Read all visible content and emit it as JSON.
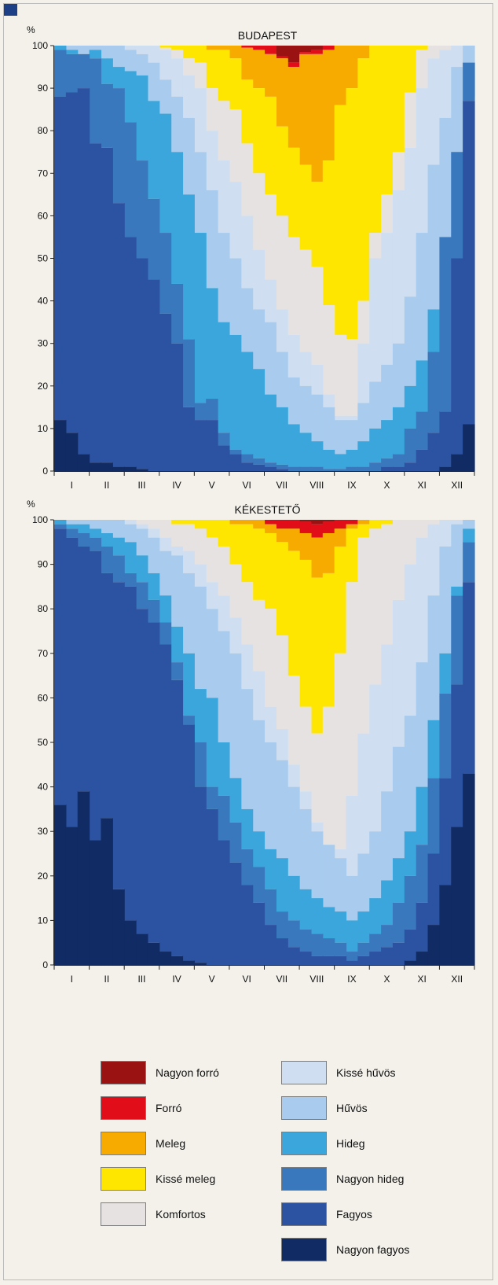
{
  "categories": [
    {
      "key": "nagyon_forro",
      "label": "Nagyon forró",
      "color": "#9b1212"
    },
    {
      "key": "forro",
      "label": "Forró",
      "color": "#e10d18"
    },
    {
      "key": "meleg",
      "label": "Meleg",
      "color": "#f7ab00"
    },
    {
      "key": "kisse_meleg",
      "label": "Kissé meleg",
      "color": "#ffe600"
    },
    {
      "key": "komfortos",
      "label": "Komfortos",
      "color": "#e6e2e1"
    },
    {
      "key": "kisse_huvos",
      "label": "Kissé hűvös",
      "color": "#cfdff1"
    },
    {
      "key": "huvos",
      "label": "Hűvös",
      "color": "#a9ccee"
    },
    {
      "key": "hideg",
      "label": "Hideg",
      "color": "#3aa6dc"
    },
    {
      "key": "nagyon_hideg",
      "label": "Nagyon hideg",
      "color": "#3a78bd"
    },
    {
      "key": "fagyos",
      "label": "Fagyos",
      "color": "#2c52a2"
    },
    {
      "key": "nagyon_fagyos",
      "label": "Nagyon fagyos",
      "color": "#112b64"
    }
  ],
  "chart_data": [
    {
      "type": "area",
      "stacked": true,
      "title": "BUDAPEST",
      "ylabel": "%",
      "ylim": [
        0,
        100
      ],
      "yticks": [
        0,
        10,
        20,
        30,
        40,
        50,
        60,
        70,
        80,
        90,
        100
      ],
      "months": [
        "I",
        "II",
        "III",
        "IV",
        "V",
        "VI",
        "VII",
        "VIII",
        "IX",
        "X",
        "XI",
        "XII"
      ],
      "x_points": [
        1,
        2,
        3,
        4,
        5,
        6,
        7,
        8,
        9,
        10,
        11,
        12,
        13,
        14,
        15,
        16,
        17,
        18,
        19,
        20,
        21,
        22,
        23,
        24,
        25,
        26,
        27,
        28,
        29,
        30,
        31,
        32,
        33,
        34,
        35,
        36
      ],
      "boundaries_from_top": [
        {
          "upper": "nagyon_forro",
          "lower": "forro",
          "values": [
            100,
            100,
            100,
            100,
            100,
            100,
            100,
            100,
            100,
            100,
            100,
            100,
            100,
            100,
            100,
            100,
            100,
            100,
            100,
            97.5,
            96,
            98.5,
            99,
            100,
            100,
            100,
            100,
            100,
            100,
            100,
            100,
            100,
            100,
            100,
            100,
            100
          ]
        },
        {
          "upper": "forro",
          "lower": "meleg",
          "values": [
            100,
            100,
            100,
            100,
            100,
            100,
            100,
            100,
            100,
            100,
            100,
            100,
            100,
            100,
            100,
            100,
            99.5,
            99,
            98,
            97,
            95,
            98,
            98,
            99,
            100,
            100,
            100,
            100,
            100,
            100,
            100,
            100,
            100,
            100,
            100,
            100
          ]
        },
        {
          "upper": "meleg",
          "lower": "kisse_meleg",
          "values": [
            100,
            100,
            100,
            100,
            100,
            100,
            100,
            100,
            100,
            100,
            100,
            100,
            100,
            99,
            99,
            97,
            92,
            90,
            88,
            81,
            76,
            72,
            68,
            73,
            86,
            90,
            97,
            100,
            100,
            100,
            100,
            100,
            100,
            100,
            100,
            100
          ]
        },
        {
          "upper": "kisse_meleg",
          "lower": "komfortos",
          "values": [
            100,
            100,
            100,
            100,
            100,
            100,
            100,
            100,
            100,
            99.5,
            99,
            97,
            96,
            90,
            87,
            85,
            77,
            70,
            65,
            60,
            55,
            52,
            48,
            39,
            32,
            31,
            40,
            56,
            65,
            75,
            89,
            99,
            100,
            100,
            100,
            100
          ]
        },
        {
          "upper": "komfortos",
          "lower": "kisse_huvos",
          "values": [
            100,
            100,
            100,
            100,
            100,
            100,
            100,
            100,
            100,
            99,
            97,
            93,
            90,
            80,
            73,
            68,
            60,
            52,
            45,
            38,
            32,
            28,
            25,
            18,
            13,
            13,
            30,
            50,
            56,
            66,
            76,
            90,
            97,
            99,
            100,
            100
          ]
        },
        {
          "upper": "kisse_huvos",
          "lower": "huvos",
          "values": [
            100,
            100,
            100,
            100,
            100,
            100,
            99,
            98,
            96,
            92,
            88,
            83,
            75,
            66,
            56,
            50,
            43,
            38,
            35,
            28,
            22,
            20,
            18,
            15,
            12,
            12,
            16,
            21,
            25,
            30,
            41,
            56,
            72,
            83,
            95,
            100
          ]
        },
        {
          "upper": "huvos",
          "lower": "hideg",
          "values": [
            100,
            99,
            98,
            99,
            97,
            95,
            94,
            93,
            87,
            84,
            75,
            65,
            56,
            43,
            35,
            32,
            28,
            24,
            18,
            15,
            11,
            9,
            7,
            5,
            4,
            5,
            7,
            10,
            12,
            15,
            20,
            26,
            38,
            52,
            60,
            88
          ]
        },
        {
          "upper": "hideg",
          "lower": "nagyon_hideg",
          "values": [
            99,
            98,
            98,
            97,
            91,
            90,
            82,
            73,
            64,
            56,
            44,
            31,
            16,
            17,
            9,
            5,
            4,
            3,
            2,
            1.5,
            1,
            1,
            1,
            0.5,
            0.5,
            1,
            1,
            2,
            3,
            4,
            10,
            14,
            28,
            55,
            75,
            96
          ]
        },
        {
          "upper": "nagyon_hideg",
          "lower": "fagyos",
          "values": [
            88,
            89,
            90,
            77,
            76,
            63,
            55,
            50,
            45,
            37,
            30,
            15,
            12,
            12,
            6,
            4,
            2,
            1.5,
            1,
            0.5,
            0,
            0,
            0,
            0,
            0,
            0,
            0,
            0,
            1,
            1,
            2,
            5,
            9,
            14,
            50,
            87
          ]
        },
        {
          "upper": "fagyos",
          "lower": "nagyon_fagyos",
          "values": [
            12,
            9,
            4,
            2,
            2,
            1,
            1,
            0.5,
            0,
            0,
            0,
            0,
            0,
            0,
            0,
            0,
            0,
            0,
            0,
            0,
            0,
            0,
            0,
            0,
            0,
            0,
            0,
            0,
            0,
            0,
            0,
            0,
            0,
            1,
            4,
            11
          ]
        }
      ]
    },
    {
      "type": "area",
      "stacked": true,
      "title": "KÉKESTETŐ",
      "ylabel": "%",
      "ylim": [
        0,
        100
      ],
      "yticks": [
        0,
        10,
        20,
        30,
        40,
        50,
        60,
        70,
        80,
        90,
        100
      ],
      "months": [
        "I",
        "II",
        "III",
        "IV",
        "V",
        "VI",
        "VII",
        "VIII",
        "IX",
        "X",
        "XI",
        "XII"
      ],
      "x_points": [
        1,
        2,
        3,
        4,
        5,
        6,
        7,
        8,
        9,
        10,
        11,
        12,
        13,
        14,
        15,
        16,
        17,
        18,
        19,
        20,
        21,
        22,
        23,
        24,
        25,
        26,
        27,
        28,
        29,
        30,
        31,
        32,
        33,
        34,
        35,
        36
      ],
      "boundaries_from_top": [
        {
          "upper": "nagyon_forro",
          "lower": "forro",
          "values": [
            100,
            100,
            100,
            100,
            100,
            100,
            100,
            100,
            100,
            100,
            100,
            100,
            100,
            100,
            100,
            100,
            100,
            100,
            100,
            100,
            100,
            99.5,
            99,
            99.5,
            100,
            100,
            100,
            100,
            100,
            100,
            100,
            100,
            100,
            100,
            100,
            100
          ]
        },
        {
          "upper": "forro",
          "lower": "meleg",
          "values": [
            100,
            100,
            100,
            100,
            100,
            100,
            100,
            100,
            100,
            100,
            100,
            100,
            100,
            100,
            100,
            100,
            100,
            100,
            99,
            98,
            98,
            97,
            96,
            97,
            98,
            99,
            100,
            100,
            100,
            100,
            100,
            100,
            100,
            100,
            100,
            100
          ]
        },
        {
          "upper": "meleg",
          "lower": "kisse_meleg",
          "values": [
            100,
            100,
            100,
            100,
            100,
            100,
            100,
            100,
            100,
            100,
            100,
            100,
            100,
            100,
            100,
            99,
            99,
            98,
            97,
            95,
            93,
            91,
            87,
            88,
            94,
            98,
            99,
            100,
            100,
            100,
            100,
            100,
            100,
            100,
            100,
            100
          ]
        },
        {
          "upper": "kisse_meleg",
          "lower": "komfortos",
          "values": [
            100,
            100,
            100,
            100,
            100,
            100,
            100,
            100,
            100,
            100,
            99,
            99,
            98,
            96,
            94,
            90,
            86,
            82,
            80,
            74,
            65,
            58,
            52,
            58,
            70,
            86,
            96,
            98,
            99,
            100,
            100,
            100,
            100,
            100,
            100,
            100
          ]
        },
        {
          "upper": "komfortos",
          "lower": "kisse_huvos",
          "values": [
            100,
            100,
            100,
            100,
            100,
            100,
            100,
            99,
            98,
            96,
            94,
            93,
            90,
            86,
            83,
            78,
            72,
            66,
            58,
            53,
            45,
            39,
            32,
            27,
            26,
            38,
            52,
            63,
            72,
            82,
            90,
            96,
            99,
            100,
            100,
            100
          ]
        },
        {
          "upper": "kisse_huvos",
          "lower": "huvos",
          "values": [
            100,
            100,
            100,
            100,
            100,
            100,
            99,
            98,
            96,
            93,
            92,
            88,
            85,
            80,
            75,
            70,
            62,
            55,
            50,
            46,
            40,
            35,
            30,
            27,
            24,
            20,
            25,
            30,
            39,
            49,
            56,
            68,
            83,
            94,
            99,
            100
          ]
        },
        {
          "upper": "huvos",
          "lower": "hideg",
          "values": [
            100,
            99,
            99,
            98,
            97,
            96,
            95,
            92,
            88,
            83,
            76,
            70,
            62,
            60,
            50,
            42,
            35,
            30,
            26,
            24,
            20,
            17,
            15,
            13,
            12,
            10,
            12,
            15,
            19,
            24,
            30,
            40,
            55,
            70,
            85,
            98
          ]
        },
        {
          "upper": "hideg",
          "lower": "nagyon_hideg",
          "values": [
            99,
            98,
            97,
            96,
            94,
            92,
            88,
            86,
            82,
            77,
            68,
            56,
            50,
            40,
            38,
            32,
            26,
            22,
            17,
            12,
            10,
            8,
            7,
            6,
            5,
            3,
            5,
            7,
            9,
            14,
            20,
            27,
            42,
            61,
            83,
            95
          ]
        },
        {
          "upper": "nagyon_hideg",
          "lower": "fagyos",
          "values": [
            98,
            96,
            94,
            93,
            88,
            86,
            85,
            80,
            77,
            72,
            64,
            54,
            40,
            35,
            28,
            23,
            18,
            14,
            9,
            6,
            4,
            3,
            2,
            2,
            2,
            1,
            2,
            3,
            4,
            5,
            8,
            14,
            25,
            42,
            63,
            86
          ]
        },
        {
          "upper": "fagyos",
          "lower": "nagyon_fagyos",
          "values": [
            36,
            31,
            39,
            28,
            33,
            17,
            10,
            7,
            5,
            3,
            2,
            1,
            0.5,
            0,
            0,
            0,
            0,
            0,
            0,
            0,
            0,
            0,
            0,
            0,
            0,
            0,
            0,
            0,
            0,
            0,
            1,
            3,
            9,
            18,
            31,
            43
          ]
        }
      ]
    }
  ]
}
